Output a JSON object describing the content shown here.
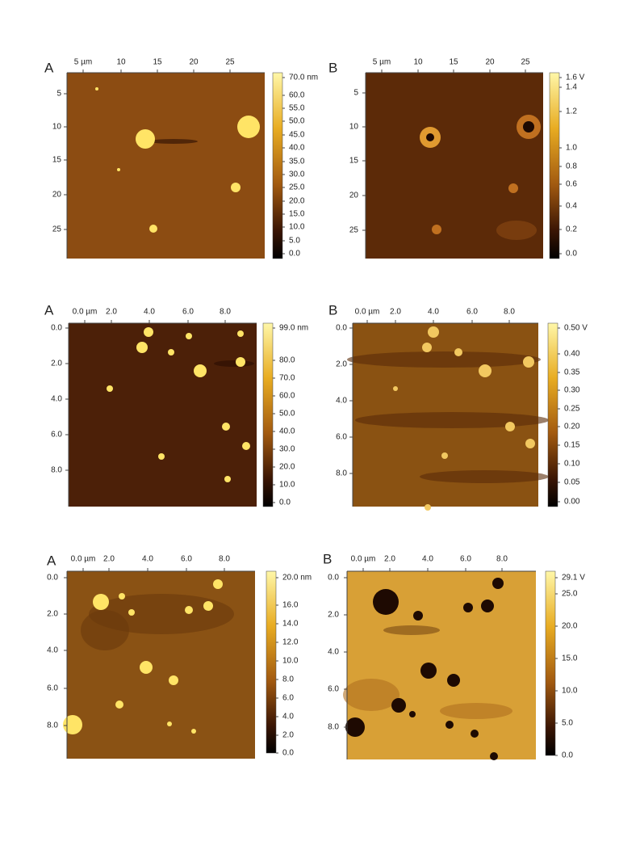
{
  "panels": [
    {
      "letter": "A",
      "x_labels": [
        "5 µm",
        "10",
        "15",
        "20",
        "25"
      ],
      "y_labels": [
        "5",
        "10",
        "15",
        "20",
        "25"
      ],
      "colorbar_labels": [
        "70.0 nm",
        "60.0",
        "55.0",
        "50.0",
        "45.0",
        "40.0",
        "35.0",
        "30.0",
        "25.0",
        "20.0",
        "15.0",
        "10.0",
        "5.0",
        "0.0"
      ]
    },
    {
      "letter": "B",
      "x_labels": [
        "5 µm",
        "10",
        "15",
        "20",
        "25"
      ],
      "y_labels": [
        "5",
        "10",
        "15",
        "20",
        "25"
      ],
      "colorbar_labels": [
        "1.6 V",
        "1.4",
        "1.2",
        "1.0",
        "0.8",
        "0.6",
        "0.4",
        "0.2",
        "0.0"
      ]
    },
    {
      "letter": "A",
      "x_labels": [
        "0.0 µm",
        "2.0",
        "4.0",
        "6.0",
        "8.0"
      ],
      "y_labels": [
        "0.0",
        "2.0",
        "4.0",
        "6.0",
        "8.0"
      ],
      "colorbar_labels": [
        "99.0 nm",
        "80.0",
        "70.0",
        "60.0",
        "50.0",
        "40.0",
        "30.0",
        "20.0",
        "10.0",
        "0.0"
      ]
    },
    {
      "letter": "B",
      "x_labels": [
        "0.0 µm",
        "2.0",
        "4.0",
        "6.0",
        "8.0"
      ],
      "y_labels": [
        "0.0",
        "2.0",
        "4.0",
        "6.0",
        "8.0"
      ],
      "colorbar_labels": [
        "0.50 V",
        "0.40",
        "0.35",
        "0.30",
        "0.25",
        "0.20",
        "0.15",
        "0.10",
        "0.05",
        "0.00"
      ]
    },
    {
      "letter": "A",
      "x_labels": [
        "0.0 µm",
        "2.0",
        "4.0",
        "6.0",
        "8.0"
      ],
      "y_labels": [
        "0.0",
        "2.0",
        "4.0",
        "6.0",
        "8.0"
      ],
      "colorbar_labels": [
        "20.0 nm",
        "16.0",
        "14.0",
        "12.0",
        "10.0",
        "8.0",
        "6.0",
        "4.0",
        "2.0",
        "0.0"
      ]
    },
    {
      "letter": "B",
      "x_labels": [
        "0.0 µm",
        "2.0",
        "4.0",
        "6.0",
        "8.0"
      ],
      "y_labels": [
        "0.0",
        "2.0",
        "4.0",
        "6.0",
        "8.0"
      ],
      "colorbar_labels": [
        "29.1 V",
        "25.0",
        "20.0",
        "15.0",
        "10.0",
        "5.0",
        "0.0"
      ]
    }
  ]
}
